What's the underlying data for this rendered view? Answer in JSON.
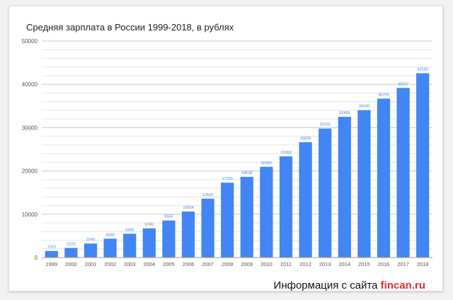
{
  "page": {
    "title": "Средняя зарплата в России 1999-2018, в рублях",
    "source_prefix": "Информация с сайта ",
    "source_brand": "fincan.ru"
  },
  "colors": {
    "bar": "#4285f4",
    "label": "#4285f4",
    "grid": "#d7d7d7",
    "axis_text": "#555555",
    "brand": "#e03030"
  },
  "chart_data": {
    "type": "bar",
    "title": "Средняя зарплата в России 1999-2018, в рублях",
    "xlabel": "",
    "ylabel": "",
    "ylim": [
      0,
      50000
    ],
    "y_ticks": [
      0,
      10000,
      20000,
      30000,
      40000,
      50000
    ],
    "y_tick_labels": [
      "0",
      "10000",
      "20000",
      "30000",
      "40000",
      "50000"
    ],
    "grid": true,
    "legend": "none",
    "categories": [
      "1999",
      "2000",
      "2001",
      "2002",
      "2003",
      "2004",
      "2005",
      "2006",
      "2007",
      "2008",
      "2009",
      "2010",
      "2011",
      "2012",
      "2013",
      "2014",
      "2015",
      "2016",
      "2017",
      "2018"
    ],
    "values": [
      1523,
      2223,
      3240,
      4360,
      5499,
      6740,
      8555,
      10634,
      13593,
      17290,
      18638,
      20952,
      23369,
      26629,
      29792,
      32495,
      34030,
      36709,
      39167,
      42550
    ],
    "value_labels": [
      "1523",
      "2223",
      "3240",
      "4360",
      "5499",
      "6740",
      "8555",
      "10634",
      "13593",
      "17290",
      "18638",
      "20952",
      "23369",
      "26629",
      "29792",
      "32495",
      "34030",
      "36709",
      "39167",
      "42550"
    ]
  }
}
